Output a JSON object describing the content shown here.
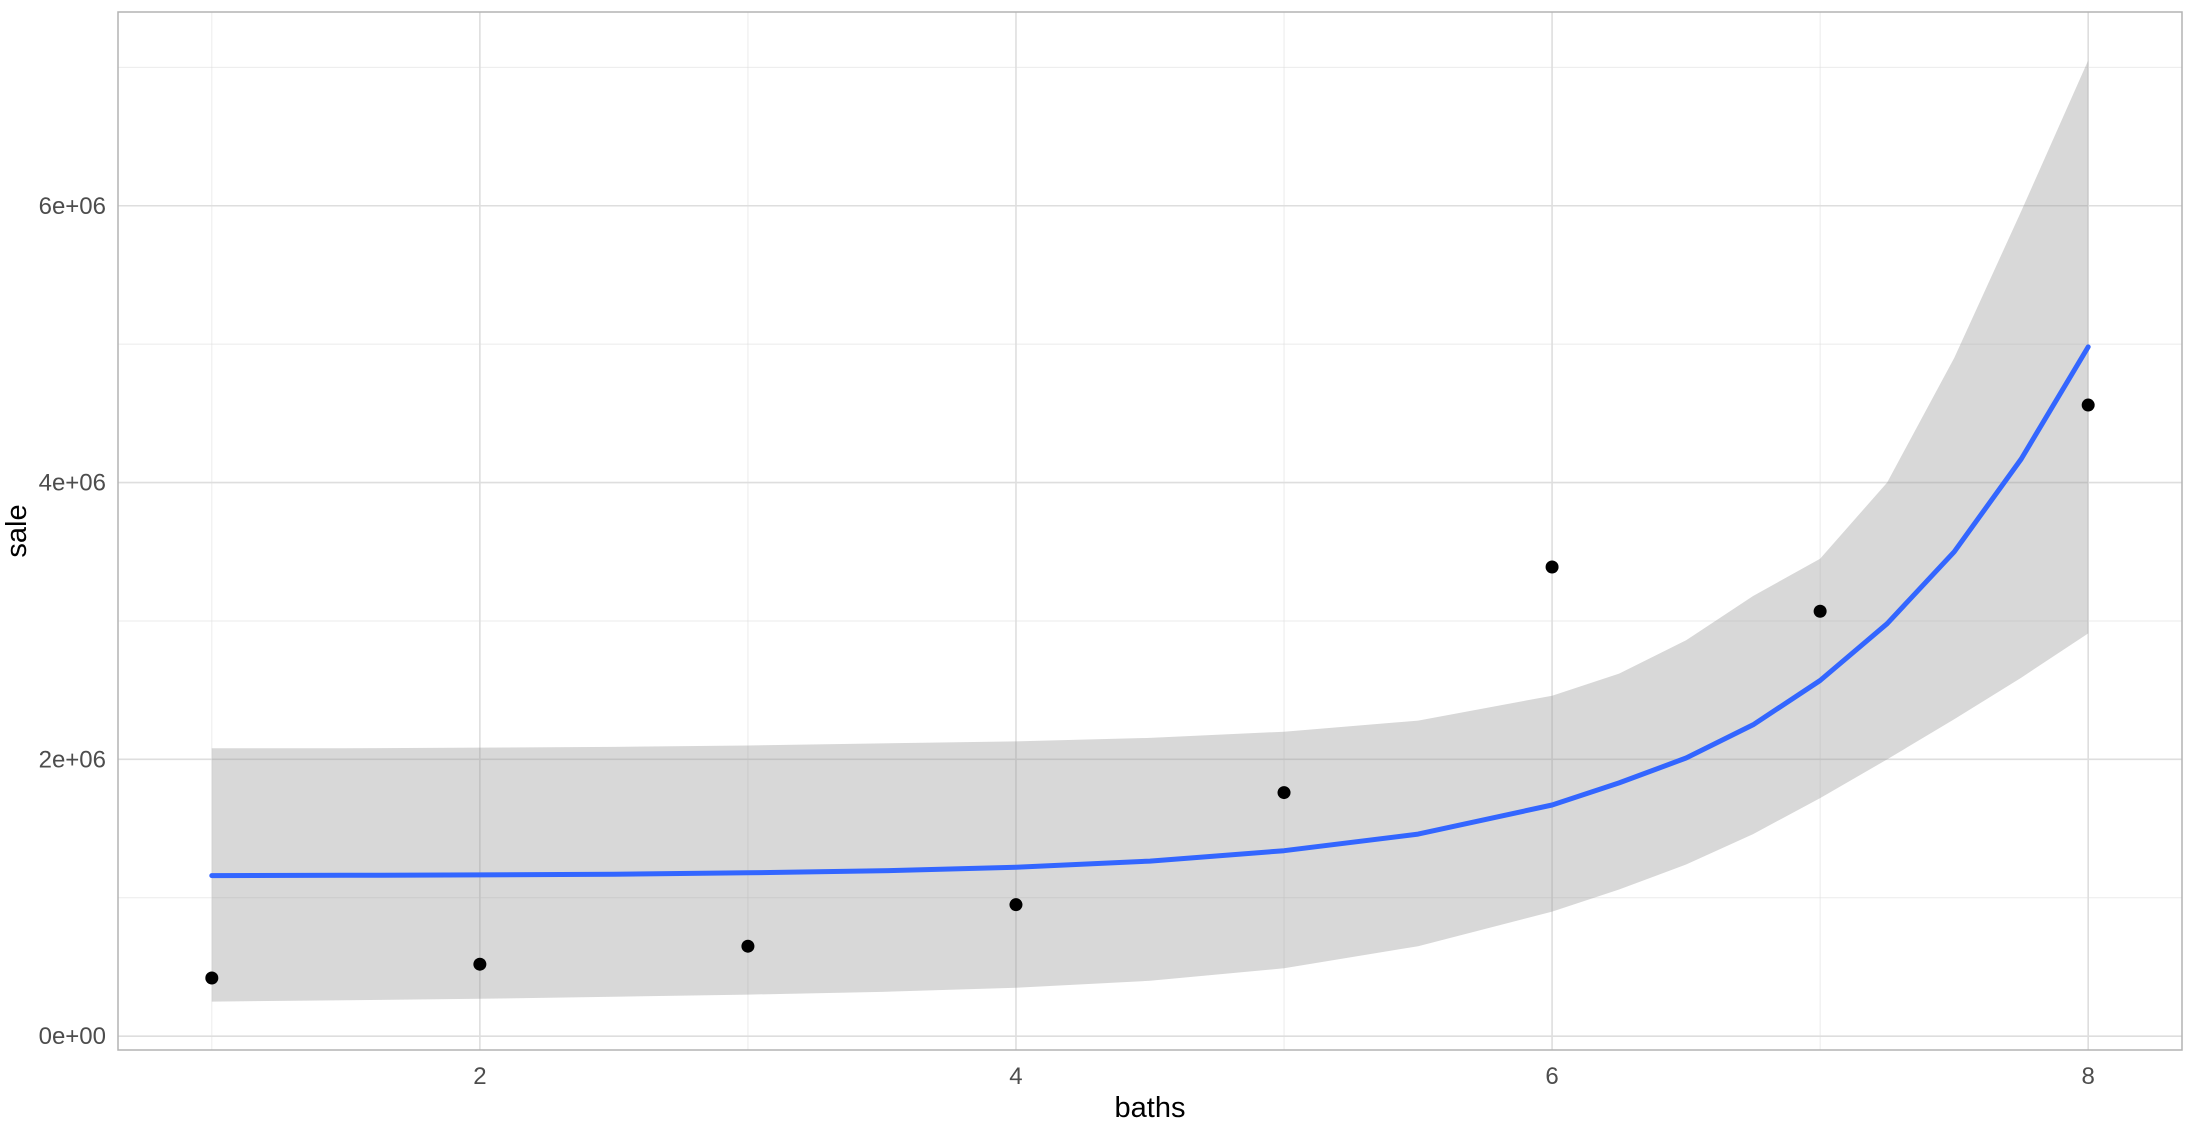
{
  "chart_data": {
    "type": "scatter",
    "xlabel": "baths",
    "ylabel": "sale",
    "xlim": [
      0.65,
      8.35
    ],
    "ylim": [
      -100000,
      7400000
    ],
    "x_ticks": [
      2,
      4,
      6,
      8
    ],
    "x_tick_labels": [
      "2",
      "4",
      "6",
      "8"
    ],
    "x_minor": [
      1,
      3,
      5,
      7
    ],
    "y_ticks": [
      0,
      2000000,
      4000000,
      6000000
    ],
    "y_tick_labels": [
      "0e+00",
      "2e+06",
      "4e+06",
      "6e+06"
    ],
    "y_minor": [
      1000000,
      3000000,
      5000000,
      7000000
    ],
    "grid": true,
    "theme": "light",
    "colors": {
      "points": "#000000",
      "fit_line": "#3366FF",
      "ribbon": "#999999",
      "grid": "#dedede",
      "panel_border": "#b3b3b3"
    },
    "points": [
      {
        "x": 1,
        "y": 420000
      },
      {
        "x": 2,
        "y": 520000
      },
      {
        "x": 3,
        "y": 650000
      },
      {
        "x": 4,
        "y": 950000
      },
      {
        "x": 5,
        "y": 1760000
      },
      {
        "x": 6,
        "y": 3390000
      },
      {
        "x": 7,
        "y": 3070000
      },
      {
        "x": 8,
        "y": 4560000
      }
    ],
    "fit": {
      "x": [
        1,
        1.5,
        2,
        2.5,
        3,
        3.5,
        4,
        4.5,
        5,
        5.5,
        6,
        6.25,
        6.5,
        6.75,
        7,
        7.25,
        7.5,
        7.75,
        8
      ],
      "y": [
        1160000,
        1162000,
        1165000,
        1170000,
        1180000,
        1195000,
        1220000,
        1265000,
        1340000,
        1460000,
        1670000,
        1830000,
        2010000,
        2250000,
        2570000,
        2980000,
        3500000,
        4170000,
        4980000
      ],
      "lower": [
        250000,
        260000,
        270000,
        285000,
        300000,
        320000,
        350000,
        400000,
        490000,
        650000,
        900000,
        1060000,
        1240000,
        1460000,
        1720000,
        2000000,
        2290000,
        2590000,
        2910000
      ],
      "upper": [
        2080000,
        2080000,
        2085000,
        2090000,
        2100000,
        2115000,
        2130000,
        2155000,
        2200000,
        2280000,
        2460000,
        2620000,
        2860000,
        3180000,
        3450000,
        4000000,
        4900000,
        5960000,
        7050000
      ]
    }
  }
}
